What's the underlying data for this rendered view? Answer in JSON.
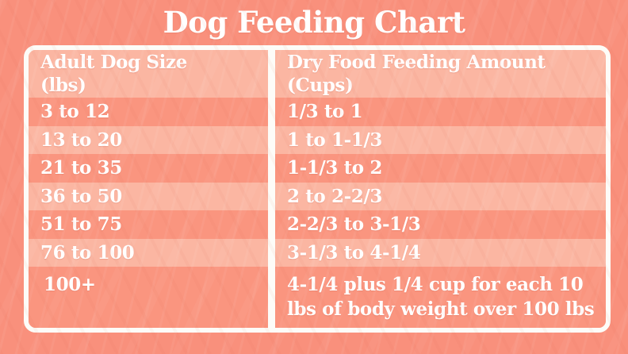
{
  "title": "Dog Feeding Chart",
  "colors": {
    "background": "#f9907c",
    "row_dark": "#fa957f",
    "row_light": "#fbb6a2",
    "frame": "#fdfcf8",
    "text": "#ffffff"
  },
  "chart_data": {
    "type": "table",
    "title": "Dog Feeding Chart",
    "columns": [
      {
        "full": "Adult Dog Size (lbs)",
        "line1": "Adult Dog Size",
        "line2": "(lbs)"
      },
      {
        "full": "Dry Food Feeding Amount (Cups)",
        "line1": "Dry Food Feeding Amount",
        "line2": "(Cups)"
      }
    ],
    "rows": [
      {
        "size": "3 to 12",
        "amount": "1/3 to 1"
      },
      {
        "size": "13 to 20",
        "amount": "1 to 1-1/3"
      },
      {
        "size": "21 to 35",
        "amount": "1-1/3 to 2"
      },
      {
        "size": "36 to 50",
        "amount": "2 to 2-2/3"
      },
      {
        "size": "51 to 75",
        "amount": "2-2/3 to 3-1/3"
      },
      {
        "size": "76 to 100",
        "amount": "3-1/3 to 4-1/4"
      },
      {
        "size": "100+",
        "amount": "4-1/4 plus 1/4 cup for each 10 lbs of body weight over 100 lbs"
      }
    ]
  }
}
